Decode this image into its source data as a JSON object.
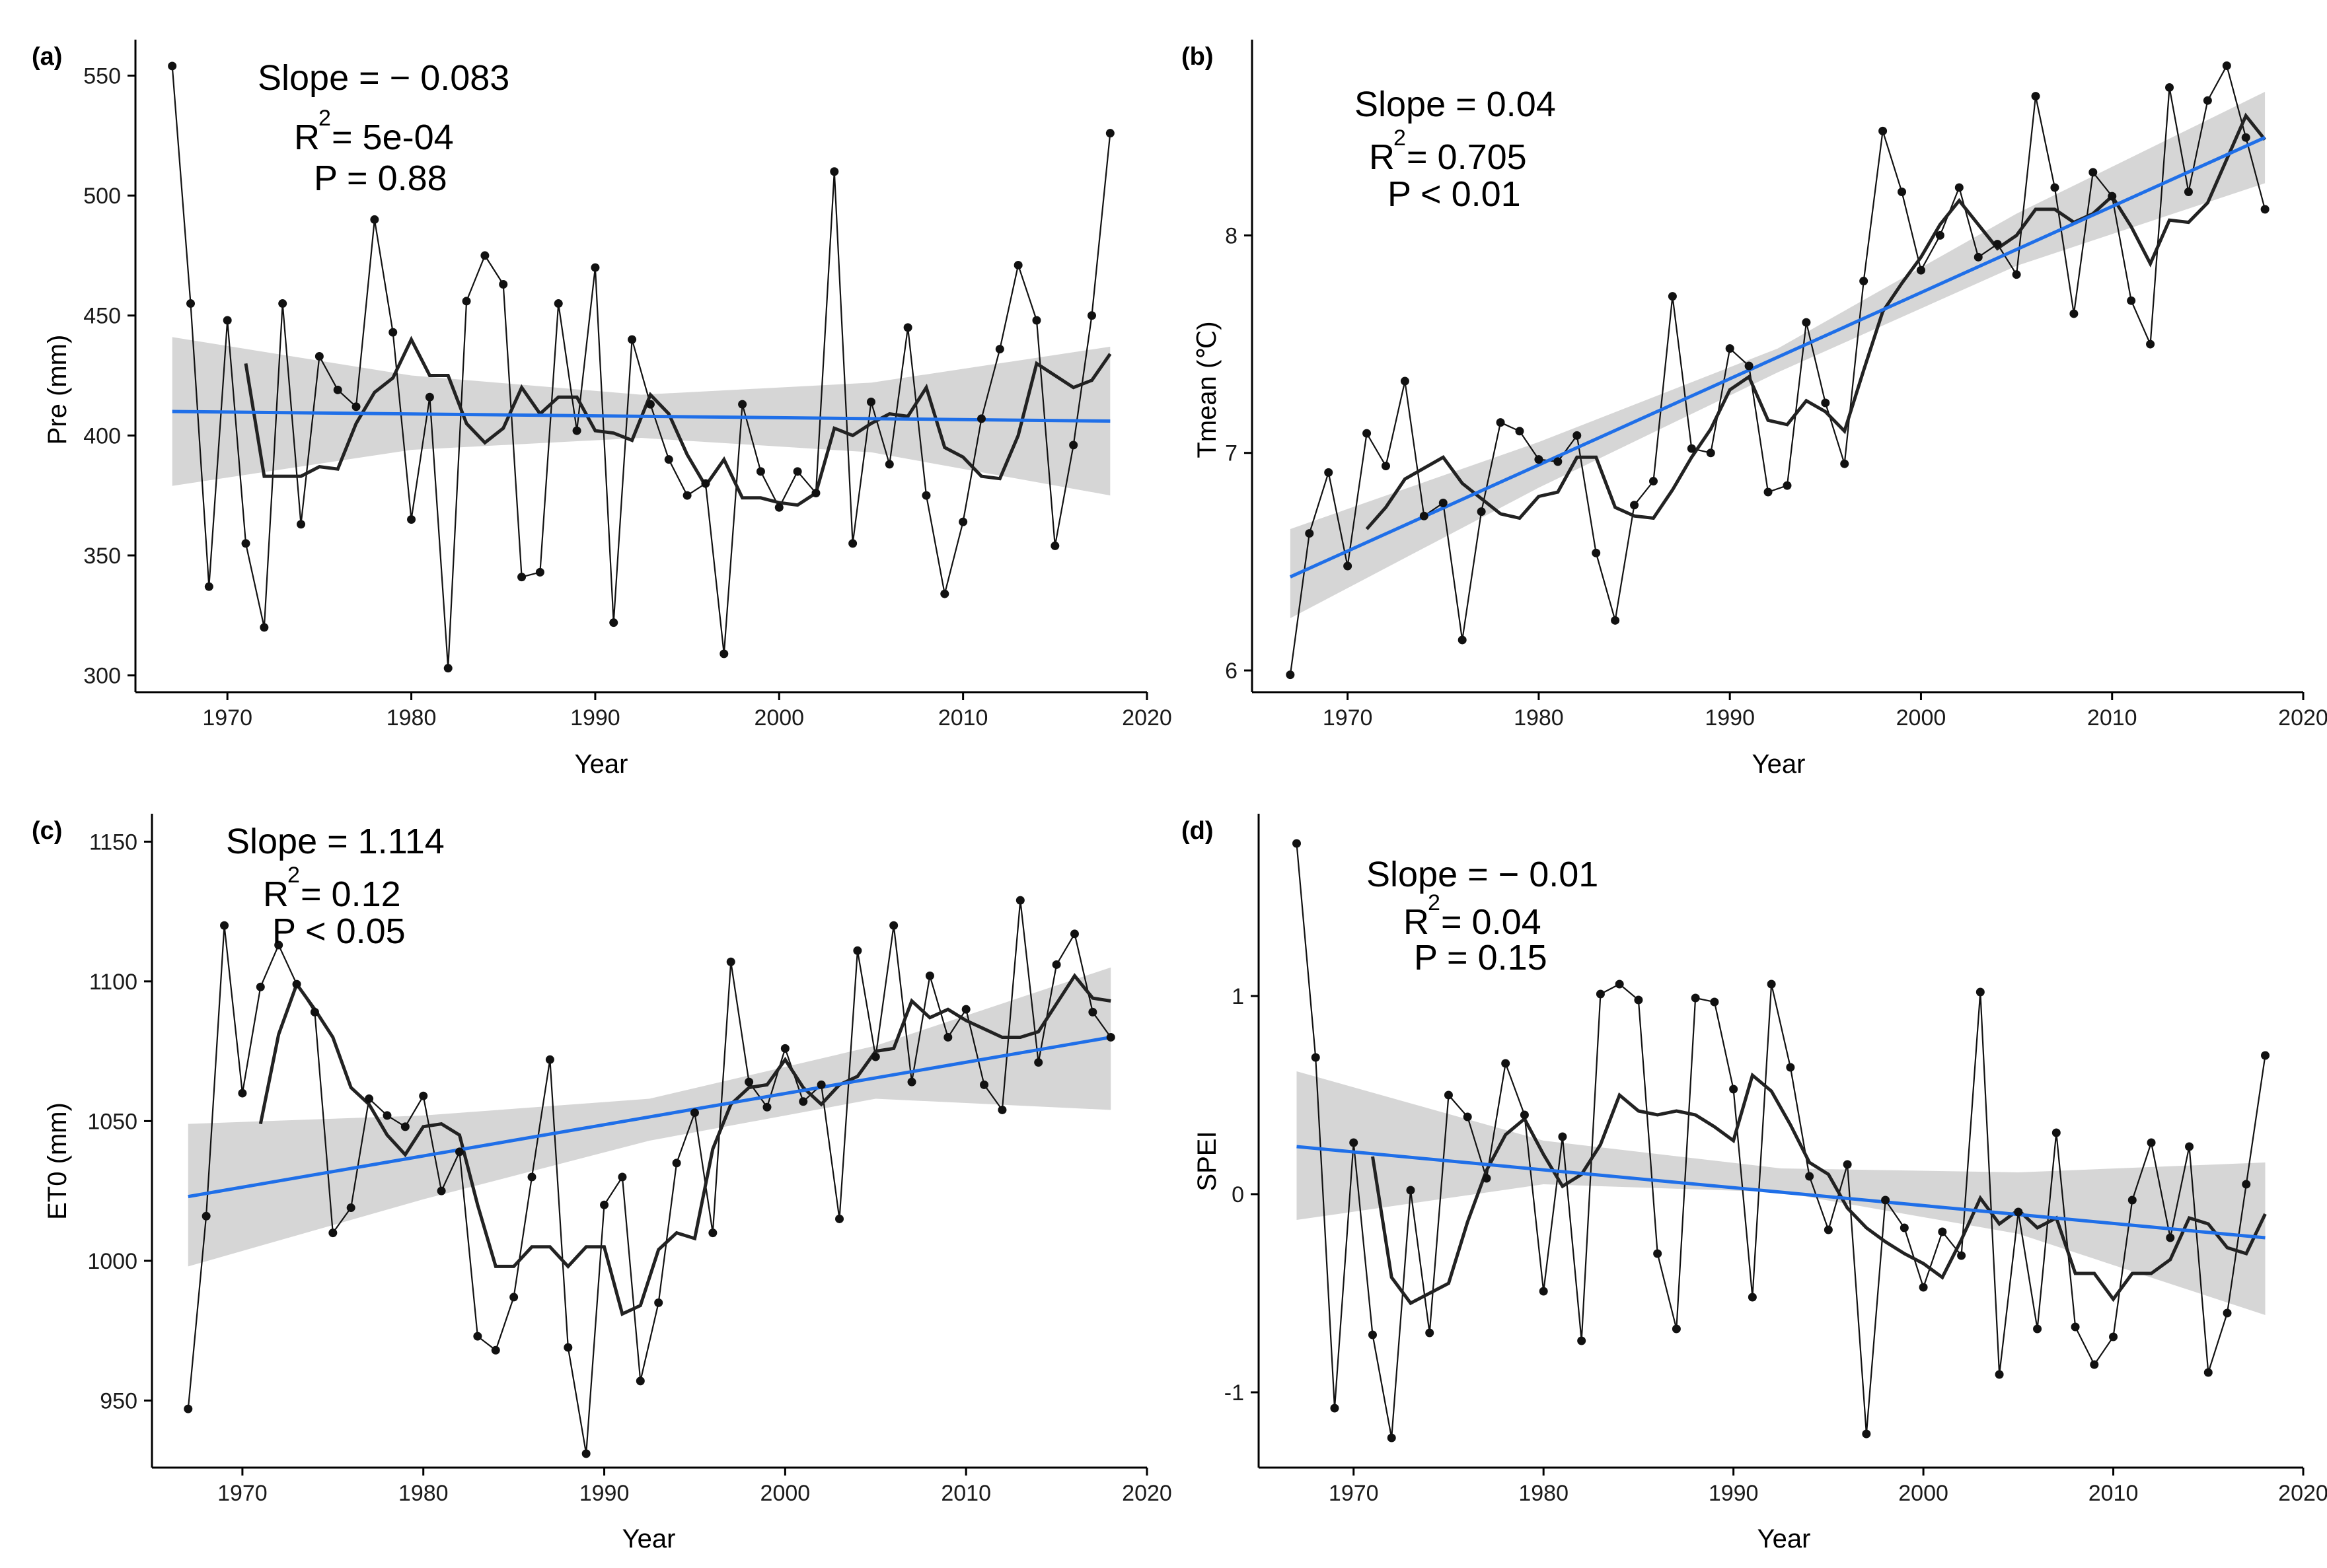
{
  "chart_data": [
    {
      "panel": "(a)",
      "type": "line",
      "ylabel": "Pre (mm)",
      "xlabel": "Year",
      "xlim": [
        1965,
        2020
      ],
      "ylim": [
        293,
        565
      ],
      "xticks": [
        1970,
        1980,
        1990,
        2000,
        2010,
        2020
      ],
      "yticks": [
        300,
        350,
        400,
        450,
        500,
        550
      ],
      "stats": {
        "slope": "Slope = − 0.083",
        "r2_prefix": "R",
        "r2_value": " = 5e-04",
        "p": "P = 0.88"
      },
      "x": [
        1967,
        1968,
        1969,
        1970,
        1971,
        1972,
        1973,
        1974,
        1975,
        1976,
        1977,
        1978,
        1979,
        1980,
        1981,
        1982,
        1983,
        1984,
        1985,
        1986,
        1987,
        1988,
        1989,
        1990,
        1991,
        1992,
        1993,
        1994,
        1995,
        1996,
        1997,
        1998,
        1999,
        2000,
        2001,
        2002,
        2003,
        2004,
        2005,
        2006,
        2007,
        2008,
        2009,
        2010,
        2011,
        2012,
        2013,
        2014,
        2015,
        2016,
        2017,
        2018
      ],
      "values": [
        554,
        455,
        337,
        448,
        355,
        320,
        455,
        363,
        433,
        419,
        412,
        490,
        443,
        365,
        416,
        303,
        456,
        475,
        463,
        341,
        343,
        455,
        402,
        470,
        322,
        440,
        413,
        390,
        375,
        380,
        309,
        413,
        385,
        370,
        385,
        376,
        510,
        355,
        414,
        388,
        445,
        375,
        334,
        364,
        407,
        436,
        471,
        448,
        354,
        396,
        450,
        526
      ],
      "moving_average": [
        null,
        null,
        null,
        null,
        430,
        383,
        383,
        383,
        387,
        386,
        405,
        418,
        424,
        440,
        425,
        425,
        405,
        397,
        403,
        420,
        409,
        416,
        416,
        402,
        401,
        398,
        417,
        409,
        392,
        379,
        390,
        374,
        374,
        372,
        371,
        376,
        403,
        400,
        405,
        409,
        408,
        420,
        395,
        391,
        383,
        382,
        400,
        430,
        425,
        420,
        423,
        434
      ],
      "trend": {
        "start": [
          1967,
          410
        ],
        "end": [
          2018,
          406
        ]
      },
      "ci_band": {
        "x": [
          1967,
          1980,
          1992.5,
          2005,
          2018
        ],
        "lower": [
          379,
          394,
          399,
          393,
          375
        ],
        "upper": [
          441,
          425,
          417,
          422,
          437
        ]
      }
    },
    {
      "panel": "(b)",
      "type": "line",
      "ylabel": "Tmean (℃)",
      "xlabel": "Year",
      "xlim": [
        1965,
        2020
      ],
      "ylim": [
        5.9,
        8.9
      ],
      "xticks": [
        1970,
        1980,
        1990,
        2000,
        2010,
        2020
      ],
      "yticks": [
        6,
        7,
        8
      ],
      "stats": {
        "slope": "Slope = 0.04",
        "r2_prefix": "R",
        "r2_value": " = 0.705",
        "p": "P < 0.01"
      },
      "x": [
        1967,
        1968,
        1969,
        1970,
        1971,
        1972,
        1973,
        1974,
        1975,
        1976,
        1977,
        1978,
        1979,
        1980,
        1981,
        1982,
        1983,
        1984,
        1985,
        1986,
        1987,
        1988,
        1989,
        1990,
        1991,
        1992,
        1993,
        1994,
        1995,
        1996,
        1997,
        1998,
        1999,
        2000,
        2001,
        2002,
        2003,
        2004,
        2005,
        2006,
        2007,
        2008,
        2009,
        2010,
        2011,
        2012,
        2013,
        2014,
        2015,
        2016,
        2017,
        2018
      ],
      "values": [
        5.98,
        6.63,
        6.91,
        6.48,
        7.09,
        6.94,
        7.33,
        6.71,
        6.77,
        6.14,
        6.73,
        7.14,
        7.1,
        6.97,
        6.96,
        7.08,
        6.54,
        6.23,
        6.76,
        6.87,
        7.72,
        7.02,
        7.0,
        7.48,
        7.4,
        6.82,
        6.85,
        7.6,
        7.23,
        6.95,
        7.79,
        8.48,
        8.2,
        7.84,
        8.0,
        8.22,
        7.9,
        7.96,
        7.82,
        8.64,
        8.22,
        7.64,
        8.29,
        8.18,
        7.7,
        7.5,
        8.68,
        8.2,
        8.62,
        8.78,
        8.45,
        8.12
      ],
      "moving_average": [
        null,
        null,
        null,
        null,
        6.65,
        6.75,
        6.88,
        6.93,
        6.98,
        6.86,
        6.79,
        6.72,
        6.7,
        6.8,
        6.82,
        6.98,
        6.98,
        6.75,
        6.71,
        6.7,
        6.83,
        6.98,
        7.11,
        7.29,
        7.35,
        7.15,
        7.13,
        7.24,
        7.19,
        7.1,
        7.38,
        7.65,
        7.78,
        7.9,
        8.05,
        8.16,
        8.05,
        7.94,
        8.0,
        8.12,
        8.12,
        8.06,
        8.1,
        8.18,
        8.04,
        7.87,
        8.07,
        8.06,
        8.15,
        8.35,
        8.55,
        8.44
      ],
      "trend": {
        "start": [
          1967,
          6.43
        ],
        "end": [
          2018,
          8.45
        ]
      },
      "ci_band": {
        "x": [
          1967,
          1980,
          1992.5,
          2005,
          2018
        ],
        "lower": [
          6.24,
          6.84,
          7.37,
          7.86,
          8.24
        ],
        "upper": [
          6.65,
          7.05,
          7.48,
          8.1,
          8.66
        ]
      }
    },
    {
      "panel": "(c)",
      "type": "line",
      "ylabel": "ET0 (mm)",
      "xlabel": "Year",
      "xlim": [
        1965,
        2020
      ],
      "ylim": [
        926,
        1160
      ],
      "xticks": [
        1970,
        1980,
        1990,
        2000,
        2010,
        2020
      ],
      "yticks": [
        950,
        1000,
        1050,
        1100,
        1150
      ],
      "stats": {
        "slope": "Slope = 1.114",
        "r2_prefix": "R",
        "r2_value": " = 0.12",
        "p": "P < 0.05"
      },
      "x": [
        1967,
        1968,
        1969,
        1970,
        1971,
        1972,
        1973,
        1974,
        1975,
        1976,
        1977,
        1978,
        1979,
        1980,
        1981,
        1982,
        1983,
        1984,
        1985,
        1986,
        1987,
        1988,
        1989,
        1990,
        1991,
        1992,
        1993,
        1994,
        1995,
        1996,
        1997,
        1998,
        1999,
        2000,
        2001,
        2002,
        2003,
        2004,
        2005,
        2006,
        2007,
        2008,
        2009,
        2010,
        2011,
        2012,
        2013,
        2014,
        2015,
        2016,
        2017,
        2018
      ],
      "values": [
        947,
        1016,
        1120,
        1060,
        1098,
        1113,
        1099,
        1089,
        1010,
        1019,
        1058,
        1052,
        1048,
        1059,
        1025,
        1039,
        973,
        968,
        987,
        1030,
        1072,
        969,
        931,
        1020,
        1030,
        957,
        985,
        1035,
        1053,
        1010,
        1107,
        1064,
        1055,
        1076,
        1057,
        1063,
        1015,
        1111,
        1073,
        1120,
        1064,
        1102,
        1080,
        1090,
        1063,
        1054,
        1129,
        1071,
        1106,
        1117,
        1089,
        1080
      ],
      "moving_average": [
        null,
        null,
        null,
        null,
        1049,
        1081,
        1099,
        1090,
        1080,
        1062,
        1056,
        1045,
        1038,
        1048,
        1049,
        1045,
        1020,
        998,
        998,
        1005,
        1005,
        998,
        1005,
        1005,
        981,
        984,
        1004,
        1010,
        1008,
        1040,
        1056,
        1062,
        1063,
        1072,
        1062,
        1056,
        1063,
        1066,
        1075,
        1076,
        1093,
        1087,
        1090,
        1086,
        1083,
        1080,
        1080,
        1082,
        1092,
        1102,
        1094,
        1093
      ],
      "trend": {
        "start": [
          1967,
          1023
        ],
        "end": [
          2018,
          1080
        ]
      },
      "ci_band": {
        "x": [
          1967,
          1980,
          1992.5,
          2005,
          2018
        ],
        "lower": [
          998,
          1022,
          1043,
          1058,
          1054
        ],
        "upper": [
          1049,
          1052,
          1058,
          1077,
          1105
        ]
      }
    },
    {
      "panel": "(d)",
      "type": "line",
      "ylabel": "SPEI",
      "xlabel": "Year",
      "xlim": [
        1965,
        2020
      ],
      "ylim": [
        -1.38,
        1.92
      ],
      "xticks": [
        1970,
        1980,
        1990,
        2000,
        2010,
        2020
      ],
      "yticks": [
        -1,
        0,
        1
      ],
      "stats": {
        "slope": "Slope = − 0.01",
        "r2_prefix": "R",
        "r2_value": " = 0.04",
        "p": "P = 0.15"
      },
      "x": [
        1967,
        1968,
        1969,
        1970,
        1971,
        1972,
        1973,
        1974,
        1975,
        1976,
        1977,
        1978,
        1979,
        1980,
        1981,
        1982,
        1983,
        1984,
        1985,
        1986,
        1987,
        1988,
        1989,
        1990,
        1991,
        1992,
        1993,
        1994,
        1995,
        1996,
        1997,
        1998,
        1999,
        2000,
        2001,
        2002,
        2003,
        2004,
        2005,
        2006,
        2007,
        2008,
        2009,
        2010,
        2011,
        2012,
        2013,
        2014,
        2015,
        2016,
        2017,
        2018
      ],
      "values": [
        1.77,
        0.69,
        -1.08,
        0.26,
        -0.71,
        -1.23,
        0.02,
        -0.7,
        0.5,
        0.39,
        0.08,
        0.66,
        0.4,
        -0.49,
        0.29,
        -0.74,
        1.01,
        1.06,
        0.98,
        -0.3,
        -0.68,
        0.99,
        0.97,
        0.53,
        -0.52,
        1.06,
        0.64,
        0.09,
        -0.18,
        0.15,
        -1.21,
        -0.03,
        -0.17,
        -0.47,
        -0.19,
        -0.31,
        1.02,
        -0.91,
        -0.09,
        -0.68,
        0.31,
        -0.67,
        -0.86,
        -0.72,
        -0.03,
        0.26,
        -0.22,
        0.24,
        -0.9,
        -0.6,
        0.05,
        0.7
      ],
      "moving_average": [
        null,
        null,
        null,
        null,
        0.19,
        -0.42,
        -0.55,
        -0.5,
        -0.45,
        -0.14,
        0.12,
        0.3,
        0.38,
        0.2,
        0.04,
        0.1,
        0.25,
        0.5,
        0.42,
        0.4,
        0.42,
        0.4,
        0.34,
        0.27,
        0.6,
        0.52,
        0.35,
        0.16,
        0.1,
        -0.07,
        -0.17,
        -0.24,
        -0.3,
        -0.35,
        -0.42,
        -0.23,
        -0.02,
        -0.15,
        -0.08,
        -0.17,
        -0.12,
        -0.4,
        -0.4,
        -0.53,
        -0.4,
        -0.4,
        -0.33,
        -0.12,
        -0.15,
        -0.27,
        -0.3,
        -0.1
      ],
      "trend": {
        "start": [
          1967,
          0.24
        ],
        "end": [
          2018,
          -0.22
        ]
      },
      "ci_band": {
        "x": [
          1967,
          1980,
          1992.5,
          2005,
          2018
        ],
        "lower": [
          -0.13,
          0.05,
          0.01,
          -0.2,
          -0.61
        ],
        "upper": [
          0.62,
          0.27,
          0.13,
          0.11,
          0.16
        ]
      }
    }
  ]
}
